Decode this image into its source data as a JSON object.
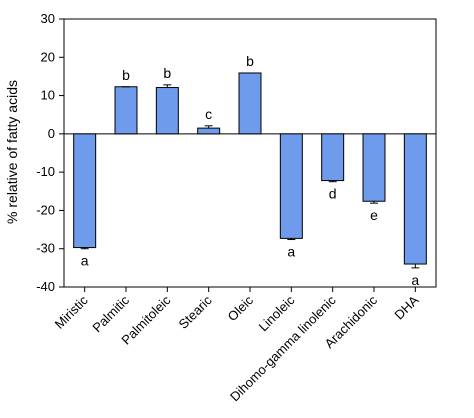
{
  "chart_data": {
    "type": "bar",
    "title": "",
    "xlabel": "",
    "ylabel": "% relative of fatty acids",
    "ylim": [
      -40,
      30
    ],
    "yticks": [
      -40,
      -30,
      -20,
      -10,
      0,
      10,
      20,
      30
    ],
    "grid": false,
    "legend": "none",
    "bar_color": "#6f9bed",
    "categories": [
      "Miristic",
      "Palmitic",
      "Palmitoleic",
      "Stearic",
      "Oleic",
      "Linoleic",
      "Dihomo-gamma linolenic",
      "Arachidonic",
      "DHA"
    ],
    "values": [
      -29.7,
      12.3,
      12.1,
      1.5,
      15.9,
      -27.3,
      -12.2,
      -17.6,
      -34.0
    ],
    "errors": [
      0.3,
      0.0,
      0.7,
      0.6,
      0.0,
      0.3,
      0.3,
      0.5,
      1.0
    ],
    "significance": [
      "a",
      "b",
      "b",
      "c",
      "b",
      "a",
      "d",
      "e",
      "a"
    ]
  }
}
